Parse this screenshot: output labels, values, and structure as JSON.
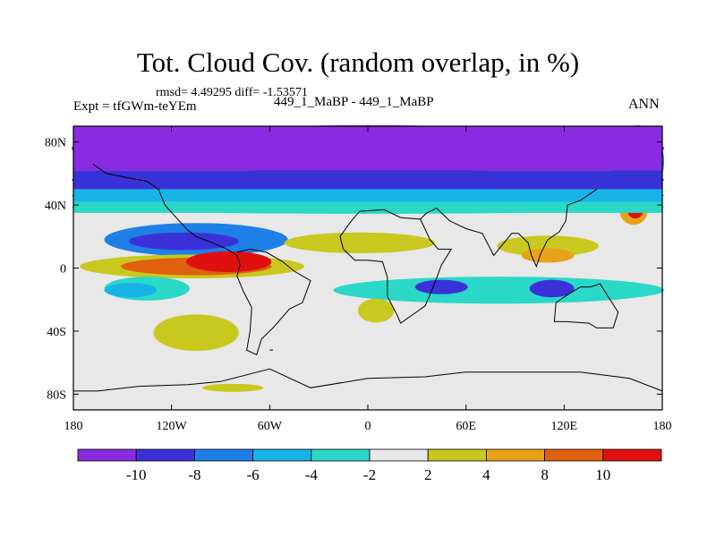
{
  "chart_data": {
    "type": "heatmap",
    "title": "Tot. Cloud Cov. (random overlap, in %)",
    "stats_line": "rmsd= 4.49295 diff= -1.53571",
    "left_label": "Expt = tfGWm-teYEm",
    "center_label": "449_1_MaBP - 449_1_MaBP",
    "right_label": "ANN",
    "x_ticks": [
      "180",
      "120W",
      "60W",
      "0",
      "60E",
      "120E",
      "180"
    ],
    "x_tick_values": [
      -180,
      -120,
      -60,
      0,
      60,
      120,
      180
    ],
    "y_ticks": [
      "80N",
      "40N",
      "0",
      "40S",
      "80S"
    ],
    "y_tick_values": [
      80,
      40,
      0,
      -40,
      -80
    ],
    "xlim": [
      -180,
      180
    ],
    "ylim": [
      -90,
      90
    ],
    "colorbar_levels": [
      "-10",
      "-8",
      "-6",
      "-4",
      "-2",
      "2",
      "4",
      "8",
      "10"
    ],
    "colorbar_colors": [
      "#8a2be2",
      "#3a32d8",
      "#1e7fe6",
      "#18b4e8",
      "#2ad8c8",
      "#e8e8e8",
      "#c8c81e",
      "#e8a218",
      "#e06010",
      "#e01010"
    ],
    "features": [
      {
        "lon": -180,
        "lat": 90,
        "lon2": 180,
        "lat2": 62,
        "level": 0
      },
      {
        "lon": -180,
        "lat": 62,
        "lon2": 180,
        "lat2": 50,
        "level": 1
      },
      {
        "lon": -180,
        "lat": 50,
        "lon2": 180,
        "lat2": 42,
        "level": 3
      },
      {
        "lon": -180,
        "lat": 42,
        "lon2": 180,
        "lat2": 35,
        "level": 4
      },
      {
        "lon": 150,
        "lat": 90,
        "lon2": 180,
        "lat2": 45,
        "level": 2
      },
      {
        "lon": -160,
        "lat": 28,
        "lon2": -50,
        "lat2": 8,
        "level": 2
      },
      {
        "lon": -145,
        "lat": 22,
        "lon2": -80,
        "lat2": 12,
        "level": 1
      },
      {
        "lon": -175,
        "lat": 8,
        "lon2": -40,
        "lat2": -6,
        "level": 6
      },
      {
        "lon": -150,
        "lat": 6,
        "lon2": -60,
        "lat2": -4,
        "level": 8
      },
      {
        "lon": -110,
        "lat": 10,
        "lon2": -60,
        "lat2": -2,
        "level": 9
      },
      {
        "lon": -50,
        "lat": 22,
        "lon2": 40,
        "lat2": 10,
        "level": 6
      },
      {
        "lon": 80,
        "lat": 20,
        "lon2": 140,
        "lat2": 8,
        "level": 6
      },
      {
        "lon": 95,
        "lat": 12,
        "lon2": 125,
        "lat2": 4,
        "level": 7
      },
      {
        "lon": 155,
        "lat": 45,
        "lon2": 170,
        "lat2": 28,
        "level": 7
      },
      {
        "lon": 160,
        "lat": 40,
        "lon2": 167,
        "lat2": 32,
        "level": 9
      },
      {
        "lon": -160,
        "lat": -6,
        "lon2": -110,
        "lat2": -20,
        "level": 4
      },
      {
        "lon": -160,
        "lat": -10,
        "lon2": -130,
        "lat2": -18,
        "level": 3
      },
      {
        "lon": -20,
        "lat": -6,
        "lon2": 180,
        "lat2": -22,
        "level": 4
      },
      {
        "lon": 30,
        "lat": -8,
        "lon2": 60,
        "lat2": -16,
        "level": 1
      },
      {
        "lon": 100,
        "lat": -8,
        "lon2": 125,
        "lat2": -18,
        "level": 1
      },
      {
        "lon": -130,
        "lat": -30,
        "lon2": -80,
        "lat2": -52,
        "level": 6
      },
      {
        "lon": -5,
        "lat": -20,
        "lon2": 15,
        "lat2": -34,
        "level": 6
      },
      {
        "lon": -100,
        "lat": -74,
        "lon2": -65,
        "lat2": -78,
        "level": 6
      }
    ],
    "coastlines": [
      [
        [
          -168,
          66
        ],
        [
          -160,
          60
        ],
        [
          -150,
          58
        ],
        [
          -135,
          55
        ],
        [
          -128,
          50
        ],
        [
          -124,
          40
        ],
        [
          -118,
          33
        ],
        [
          -110,
          24
        ],
        [
          -105,
          20
        ],
        [
          -95,
          16
        ],
        [
          -86,
          12
        ],
        [
          -80,
          8
        ],
        [
          -78,
          2
        ],
        [
          -80,
          -5
        ],
        [
          -76,
          -15
        ],
        [
          -71,
          -25
        ],
        [
          -72,
          -40
        ],
        [
          -74,
          -52
        ],
        [
          -68,
          -55
        ],
        [
          -65,
          -45
        ],
        [
          -58,
          -38
        ],
        [
          -48,
          -26
        ],
        [
          -40,
          -22
        ],
        [
          -35,
          -8
        ],
        [
          -45,
          -2
        ],
        [
          -52,
          4
        ],
        [
          -62,
          10
        ],
        [
          -72,
          12
        ],
        [
          -80,
          10
        ]
      ],
      [
        [
          -15,
          12
        ],
        [
          -17,
          20
        ],
        [
          -10,
          30
        ],
        [
          -5,
          36
        ],
        [
          10,
          37
        ],
        [
          20,
          32
        ],
        [
          32,
          31
        ],
        [
          34,
          27
        ],
        [
          38,
          18
        ],
        [
          43,
          12
        ],
        [
          51,
          12
        ],
        [
          45,
          2
        ],
        [
          40,
          -12
        ],
        [
          35,
          -24
        ],
        [
          20,
          -35
        ],
        [
          18,
          -30
        ],
        [
          12,
          -18
        ],
        [
          12,
          -6
        ],
        [
          9,
          4
        ],
        [
          0,
          5
        ],
        [
          -8,
          5
        ],
        [
          -15,
          12
        ]
      ],
      [
        [
          32,
          31
        ],
        [
          36,
          35
        ],
        [
          42,
          38
        ],
        [
          50,
          30
        ],
        [
          60,
          25
        ],
        [
          70,
          22
        ],
        [
          77,
          8
        ],
        [
          80,
          12
        ],
        [
          88,
          22
        ],
        [
          92,
          22
        ],
        [
          98,
          16
        ],
        [
          100,
          8
        ],
        [
          103,
          1
        ],
        [
          106,
          10
        ],
        [
          110,
          18
        ],
        [
          117,
          23
        ],
        [
          121,
          30
        ],
        [
          122,
          40
        ],
        [
          130,
          43
        ],
        [
          140,
          50
        ]
      ],
      [
        [
          115,
          -22
        ],
        [
          114,
          -34
        ],
        [
          122,
          -34
        ],
        [
          135,
          -35
        ],
        [
          140,
          -38
        ],
        [
          150,
          -38
        ],
        [
          153,
          -28
        ],
        [
          145,
          -15
        ],
        [
          142,
          -10
        ],
        [
          136,
          -12
        ],
        [
          130,
          -12
        ],
        [
          122,
          -17
        ],
        [
          115,
          -22
        ]
      ],
      [
        [
          -60,
          -64
        ],
        [
          -90,
          -72
        ],
        [
          -110,
          -74
        ],
        [
          -140,
          -75
        ],
        [
          -165,
          -78
        ],
        [
          -180,
          -78
        ]
      ],
      [
        [
          -60,
          -64
        ],
        [
          -35,
          -76
        ],
        [
          0,
          -70
        ],
        [
          35,
          -69
        ],
        [
          60,
          -66
        ],
        [
          90,
          -66
        ],
        [
          130,
          -66
        ],
        [
          160,
          -70
        ],
        [
          180,
          -78
        ]
      ],
      [
        [
          -60,
          -52
        ],
        [
          -58,
          -52
        ]
      ]
    ]
  }
}
